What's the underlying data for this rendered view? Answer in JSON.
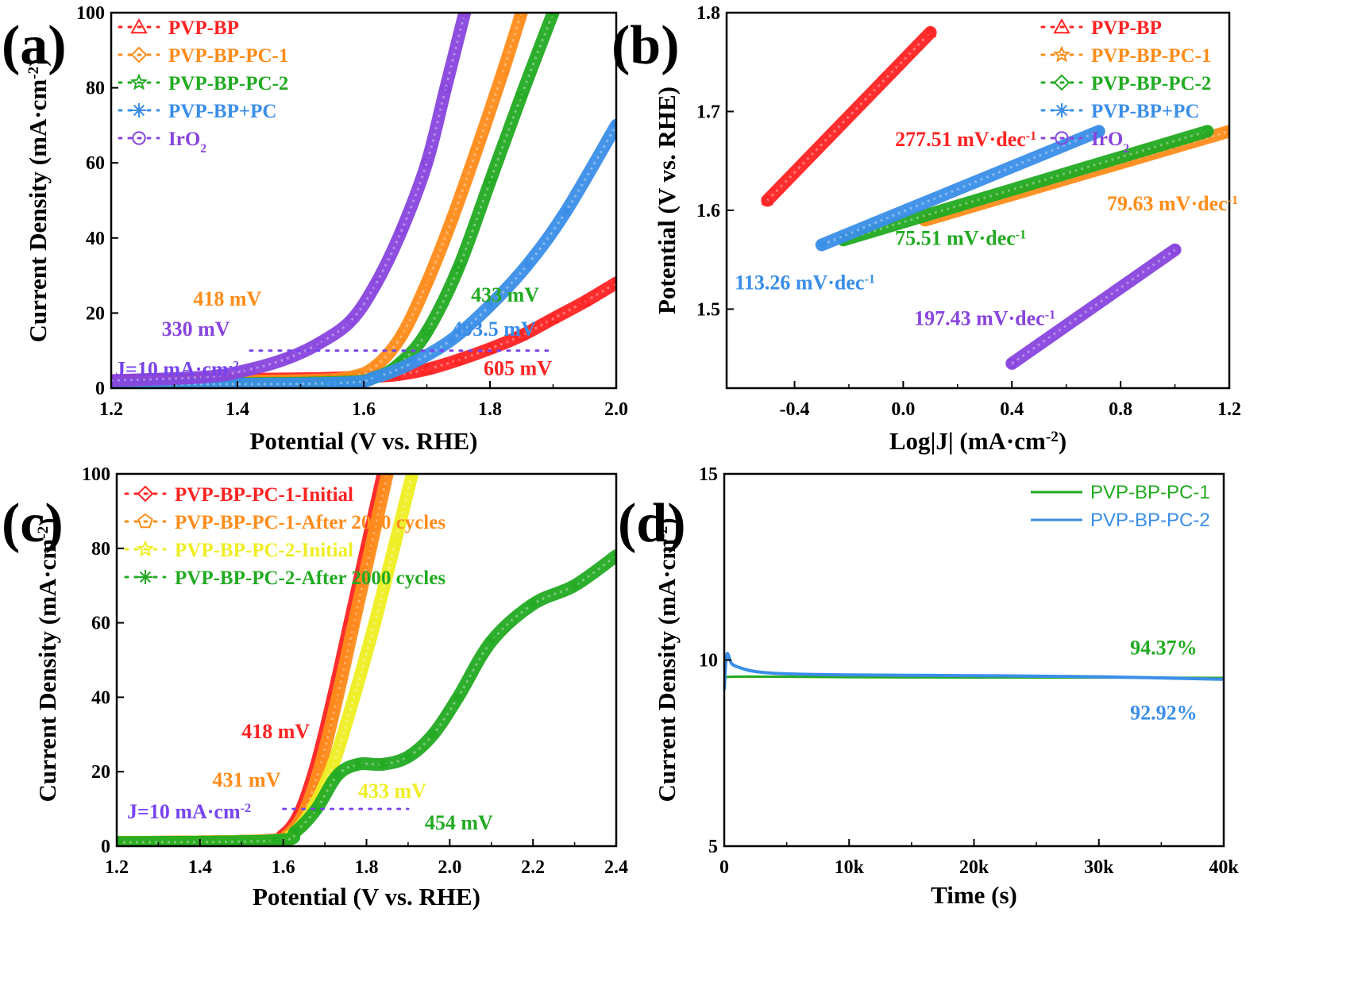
{
  "chart_data": [
    {
      "panel": "(a)",
      "type": "line",
      "xlabel": "Potential (V vs. RHE)",
      "ylabel": "Current Density (mA·cm⁻²)",
      "xlim": [
        1.2,
        2.0
      ],
      "ylim": [
        0,
        100
      ],
      "xticks": [
        1.2,
        1.4,
        1.6,
        1.8,
        2.0
      ],
      "yticks": [
        0,
        20,
        40,
        60,
        80,
        100
      ],
      "xtick_labels": [
        "1.2",
        "1.4",
        "1.6",
        "1.8",
        "2.0"
      ],
      "ytick_labels": [
        "0",
        "20",
        "40",
        "60",
        "80",
        "100"
      ],
      "series": [
        {
          "name": "PVP-BP",
          "marker": "triangle",
          "color": "#ff2222",
          "x": [
            1.2,
            1.5,
            1.6,
            1.65,
            1.7,
            1.75,
            1.8,
            1.85,
            1.9,
            1.95,
            2.0
          ],
          "y": [
            2,
            2.5,
            3,
            3.5,
            5,
            7.5,
            10.5,
            14,
            18.5,
            23,
            28
          ]
        },
        {
          "name": "PVP-BP-PC-1",
          "marker": "diamond",
          "color": "#ff8c1a",
          "x": [
            1.2,
            1.5,
            1.58,
            1.62,
            1.66,
            1.7,
            1.74,
            1.78,
            1.82,
            1.85
          ],
          "y": [
            1.5,
            2,
            3,
            6,
            14,
            28,
            45,
            64,
            84,
            100
          ]
        },
        {
          "name": "PVP-BP-PC-2",
          "marker": "star",
          "color": "#22aa22",
          "x": [
            1.2,
            1.55,
            1.62,
            1.66,
            1.7,
            1.75,
            1.8,
            1.85,
            1.9
          ],
          "y": [
            1,
            1.5,
            3,
            7,
            15,
            32,
            55,
            78,
            100
          ]
        },
        {
          "name": "PVP-BP+PC",
          "marker": "asterisk",
          "color": "#3a8ee8",
          "x": [
            1.2,
            1.55,
            1.62,
            1.68,
            1.74,
            1.8,
            1.86,
            1.92,
            2.0
          ],
          "y": [
            1,
            1.3,
            3,
            7,
            13,
            22,
            33,
            47,
            70
          ]
        },
        {
          "name": "IrO2",
          "marker": "circle",
          "color": "#8844dd",
          "x": [
            1.2,
            1.35,
            1.42,
            1.48,
            1.53,
            1.58,
            1.62,
            1.66,
            1.7,
            1.73,
            1.76
          ],
          "y": [
            2,
            3,
            5,
            8,
            12,
            18,
            28,
            42,
            60,
            80,
            100
          ]
        }
      ],
      "reference_line": {
        "label": "J=10 mA·cm⁻²",
        "y": 10,
        "x_start": 1.42,
        "x_end": 1.9
      },
      "annotations": [
        {
          "text": "418 mV",
          "color": "#ff8c1a",
          "x": 1.33,
          "y": 22
        },
        {
          "text": "330 mV",
          "color": "#8844dd",
          "x": 1.28,
          "y": 14
        },
        {
          "text": "433 mV",
          "color": "#22aa22",
          "x": 1.77,
          "y": 23
        },
        {
          "text": "493.5 mV",
          "color": "#3a8ee8",
          "x": 1.74,
          "y": 14
        },
        {
          "text": "605 mV",
          "color": "#ff2222",
          "x": 1.79,
          "y": 3.5
        }
      ]
    },
    {
      "panel": "(b)",
      "type": "line",
      "xlabel": "Log|J| (mA·cm⁻²)",
      "ylabel": "Potential (V vs. RHE)",
      "xlim": [
        -0.65,
        1.2
      ],
      "ylim": [
        1.42,
        1.8
      ],
      "xticks": [
        -0.4,
        0.0,
        0.4,
        0.8,
        1.2
      ],
      "yticks": [
        1.5,
        1.6,
        1.7,
        1.8
      ],
      "xtick_labels": [
        "-0.4",
        "0.0",
        "0.4",
        "0.8",
        "1.2"
      ],
      "ytick_labels": [
        "1.5",
        "1.6",
        "1.7",
        "1.8"
      ],
      "series": [
        {
          "name": "PVP-BP",
          "marker": "triangle",
          "color": "#ff2222",
          "x": [
            -0.5,
            0.1
          ],
          "y": [
            1.61,
            1.78
          ]
        },
        {
          "name": "PVP-BP-PC-1",
          "marker": "star",
          "color": "#ff8c1a",
          "x": [
            0.08,
            1.2
          ],
          "y": [
            1.59,
            1.68
          ]
        },
        {
          "name": "PVP-BP-PC-2",
          "marker": "diamond",
          "color": "#22aa22",
          "x": [
            -0.22,
            1.12
          ],
          "y": [
            1.57,
            1.68
          ]
        },
        {
          "name": "PVP-BP+PC",
          "marker": "asterisk",
          "color": "#3a8ee8",
          "x": [
            -0.3,
            0.72
          ],
          "y": [
            1.565,
            1.68
          ]
        },
        {
          "name": "IrO2",
          "marker": "circle",
          "color": "#8844dd",
          "x": [
            0.4,
            1.0
          ],
          "y": [
            1.445,
            1.56
          ]
        }
      ],
      "annotations": [
        {
          "text": "277.51 mV·dec⁻¹",
          "color": "#ff2222",
          "x": -0.03,
          "y": 1.665
        },
        {
          "text": "79.63 mV·dec⁻¹",
          "color": "#ff8c1a",
          "x": 0.75,
          "y": 1.6
        },
        {
          "text": "75.51 mV·dec⁻¹",
          "color": "#22aa22",
          "x": -0.03,
          "y": 1.565
        },
        {
          "text": "113.26 mV·dec⁻¹",
          "color": "#3a8ee8",
          "x": -0.62,
          "y": 1.52
        },
        {
          "text": "197.43 mV·dec⁻¹",
          "color": "#8844dd",
          "x": 0.04,
          "y": 1.484
        }
      ]
    },
    {
      "panel": "(c)",
      "type": "line",
      "xlabel": "Potential (V vs. RHE)",
      "ylabel": "Current Density (mA·cm⁻²)",
      "xlim": [
        1.2,
        2.4
      ],
      "ylim": [
        0,
        100
      ],
      "xticks": [
        1.2,
        1.4,
        1.6,
        1.8,
        2.0,
        2.2,
        2.4
      ],
      "yticks": [
        0,
        20,
        40,
        60,
        80,
        100
      ],
      "xtick_labels": [
        "1.2",
        "1.4",
        "1.6",
        "1.8",
        "2.0",
        "2.2",
        "2.4"
      ],
      "ytick_labels": [
        "0",
        "20",
        "40",
        "60",
        "80",
        "100"
      ],
      "series": [
        {
          "name": "PVP-BP-PC-1-Initial",
          "marker": "diamond",
          "color": "#ff2222",
          "x": [
            1.2,
            1.55,
            1.6,
            1.64,
            1.68,
            1.72,
            1.76,
            1.8,
            1.84
          ],
          "y": [
            1,
            1.5,
            3,
            9,
            22,
            40,
            60,
            80,
            100
          ]
        },
        {
          "name": "PVP-BP-PC-1-After 2000 cycles",
          "marker": "pentagon",
          "color": "#ff8c1a",
          "x": [
            1.2,
            1.56,
            1.61,
            1.65,
            1.69,
            1.73,
            1.77,
            1.81,
            1.85
          ],
          "y": [
            1,
            1.5,
            3,
            9,
            22,
            40,
            60,
            80,
            100
          ]
        },
        {
          "name": "PVP-BP-PC-2-Initial",
          "marker": "star",
          "color": "#eeee22",
          "x": [
            1.2,
            1.57,
            1.62,
            1.67,
            1.72,
            1.77,
            1.82,
            1.87,
            1.91
          ],
          "y": [
            1,
            1.5,
            3,
            10,
            22,
            40,
            60,
            82,
            100
          ]
        },
        {
          "name": "PVP-BP-PC-2-After 2000 cycles",
          "marker": "asterisk",
          "color": "#22aa22",
          "x": [
            1.2,
            1.58,
            1.63,
            1.68,
            1.73,
            1.78,
            1.84,
            1.9,
            1.96,
            2.02,
            2.1,
            2.2,
            2.3,
            2.4
          ],
          "y": [
            1,
            1.5,
            4,
            10,
            19,
            22,
            22,
            24,
            30,
            40,
            55,
            65,
            70,
            78
          ]
        }
      ],
      "reference_line": {
        "label": "J=10 mA·cm⁻²",
        "y": 10,
        "x_start": 1.6,
        "x_end": 1.9
      },
      "annotations": [
        {
          "text": "418 mV",
          "color": "#ff2222",
          "x": 1.5,
          "y": 29
        },
        {
          "text": "431 mV",
          "color": "#ff8c1a",
          "x": 1.43,
          "y": 16
        },
        {
          "text": "433 mV",
          "color": "#eeee22",
          "x": 1.78,
          "y": 13
        },
        {
          "text": "454 mV",
          "color": "#22aa22",
          "x": 1.94,
          "y": 4.5
        }
      ]
    },
    {
      "panel": "(d)",
      "type": "line",
      "xlabel": "Time (s)",
      "ylabel": "Current Density (mA·cm⁻²)",
      "xlim": [
        0,
        40000
      ],
      "ylim": [
        5,
        15
      ],
      "xticks": [
        0,
        10000,
        20000,
        30000,
        40000
      ],
      "yticks": [
        5,
        10,
        15
      ],
      "xtick_labels": [
        "0",
        "10k",
        "20k",
        "30k",
        "40k"
      ],
      "ytick_labels": [
        "5",
        "10",
        "15"
      ],
      "series": [
        {
          "name": "PVP-BP-PC-1",
          "color": "#22aa22",
          "x": [
            0,
            500,
            5000,
            10000,
            20000,
            30000,
            40000
          ],
          "y": [
            9.5,
            9.55,
            9.55,
            9.54,
            9.53,
            9.53,
            9.52
          ]
        },
        {
          "name": "PVP-BP-PC-2",
          "color": "#3a8ee8",
          "x": [
            0,
            200,
            600,
            1200,
            2000,
            3000,
            5000,
            10000,
            20000,
            30000,
            40000
          ],
          "y": [
            9.2,
            10.15,
            9.9,
            9.8,
            9.72,
            9.67,
            9.63,
            9.6,
            9.58,
            9.55,
            9.48
          ]
        }
      ],
      "annotations": [
        {
          "text": "94.37%",
          "color": "#22aa22",
          "x": 32500,
          "y": 10.15
        },
        {
          "text": "92.92%",
          "color": "#3a8ee8",
          "x": 32500,
          "y": 8.4
        }
      ]
    }
  ]
}
